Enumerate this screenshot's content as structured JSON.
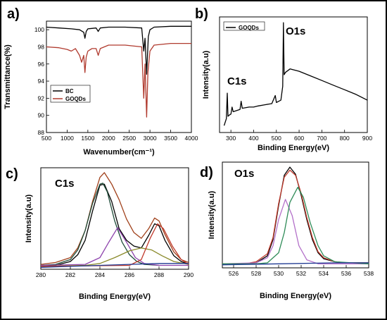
{
  "chart_data": [
    {
      "panel": "a)",
      "type": "line",
      "xlabel": "Wavenumber(cm⁻¹)",
      "ylabel": "Transmittance(%)",
      "xlim": [
        500,
        4000
      ],
      "ylim": [
        88,
        101
      ],
      "xticks": [
        500,
        1000,
        1500,
        2000,
        2500,
        3000,
        3500,
        4000
      ],
      "yticks": [
        88,
        90,
        92,
        94,
        96,
        98,
        100
      ],
      "legend_position": "bottom-left",
      "series": [
        {
          "name": "BC",
          "color": "#000000",
          "x": [
            500,
            800,
            1100,
            1300,
            1400,
            1430,
            1460,
            1500,
            1700,
            1750,
            1800,
            2000,
            2400,
            2800,
            2850,
            2880,
            2920,
            2960,
            3000,
            3100,
            3500,
            4000
          ],
          "y": [
            100.3,
            100.2,
            100.1,
            100.0,
            99.7,
            99.0,
            99.8,
            100.1,
            100.2,
            99.8,
            100.2,
            100.3,
            100.3,
            100.2,
            97.5,
            99.0,
            94.8,
            99.2,
            100.0,
            100.3,
            100.4,
            100.4
          ]
        },
        {
          "name": "GOQDs",
          "color": "#b03a2e",
          "x": [
            500,
            800,
            1000,
            1100,
            1200,
            1300,
            1350,
            1400,
            1430,
            1460,
            1500,
            1600,
            1700,
            1750,
            1800,
            2000,
            2400,
            2800,
            2850,
            2880,
            2920,
            2950,
            3000,
            3100,
            3500,
            4000
          ],
          "y": [
            98.0,
            97.9,
            97.7,
            97.5,
            97.8,
            97.0,
            96.2,
            97.0,
            95.0,
            96.8,
            97.5,
            97.8,
            97.8,
            97.0,
            97.8,
            98.2,
            98.2,
            98.0,
            92.0,
            96.0,
            89.8,
            95.0,
            97.5,
            98.2,
            98.4,
            98.4
          ]
        }
      ]
    },
    {
      "panel": "b)",
      "type": "line",
      "xlabel": "Binding Energy(eV)",
      "ylabel": "Intensity(a.u)",
      "xlim": [
        250,
        900
      ],
      "ylim": [
        0,
        100
      ],
      "xticks": [
        300,
        400,
        500,
        600,
        700,
        800,
        900
      ],
      "legend_position": "top-left",
      "annotations": [
        "C1s",
        "O1s"
      ],
      "series": [
        {
          "name": "GOQDs",
          "color": "#000000",
          "x": [
            270,
            280,
            284,
            287,
            292,
            300,
            305,
            310,
            340,
            345,
            350,
            380,
            400,
            420,
            450,
            480,
            495,
            500,
            520,
            528,
            531,
            534,
            540,
            560,
            600,
            650,
            700,
            750,
            800,
            850,
            900
          ],
          "y": [
            6,
            12,
            34,
            14,
            15,
            16,
            22,
            18,
            20,
            27,
            21,
            22,
            22,
            23,
            24,
            25,
            32,
            26,
            28,
            40,
            95,
            50,
            52,
            55,
            53,
            49,
            45,
            41,
            37,
            33,
            28
          ]
        }
      ]
    },
    {
      "panel": "c)",
      "type": "line",
      "xlabel": "Binding Energy(eV)",
      "ylabel": "Intensity(a.u)",
      "xlim": [
        280,
        290
      ],
      "ylim": [
        0,
        105
      ],
      "xticks": [
        280,
        282,
        284,
        286,
        288,
        290
      ],
      "annotations": [
        "C1s"
      ],
      "series": [
        {
          "color": "#000000",
          "x": [
            280,
            281,
            282,
            282.5,
            283,
            283.5,
            284,
            284.3,
            284.8,
            285.3,
            285.8,
            286.3,
            286.8,
            287.3,
            287.7,
            288,
            288.4,
            289,
            289.5,
            290
          ],
          "y": [
            3,
            4,
            8,
            15,
            30,
            60,
            87,
            88,
            70,
            42,
            30,
            24,
            22,
            35,
            47,
            45,
            30,
            14,
            8,
            5
          ]
        },
        {
          "color": "#a0401a",
          "x": [
            280,
            281,
            282,
            282.5,
            283,
            283.5,
            284,
            284.3,
            284.8,
            285.3,
            285.8,
            286.3,
            286.8,
            287.3,
            287.7,
            288,
            288.4,
            289,
            289.5,
            290
          ],
          "y": [
            5,
            7,
            12,
            22,
            40,
            70,
            95,
            100,
            88,
            72,
            52,
            38,
            32,
            42,
            53,
            50,
            36,
            18,
            10,
            7
          ]
        },
        {
          "color": "#1f4d3a",
          "x": [
            280,
            281,
            282,
            282.5,
            283,
            283.5,
            284,
            284.2,
            284.5,
            285,
            285.5,
            286,
            286.5,
            287,
            288
          ],
          "y": [
            4,
            5,
            10,
            20,
            40,
            68,
            88,
            89,
            80,
            50,
            28,
            15,
            8,
            5,
            4
          ]
        },
        {
          "color": "#8e44ad",
          "x": [
            280,
            283,
            284,
            284.6,
            285.2,
            285.8,
            286.4,
            287,
            288,
            290
          ],
          "y": [
            4,
            5,
            12,
            28,
            43,
            28,
            12,
            6,
            4,
            4
          ]
        },
        {
          "color": "#8a8a2a",
          "x": [
            280,
            283,
            284,
            285,
            286,
            286.8,
            287.5,
            288.2,
            289,
            290
          ],
          "y": [
            3,
            4,
            6,
            12,
            19,
            22,
            20,
            14,
            8,
            5
          ]
        },
        {
          "color": "#c0392b",
          "x": [
            280,
            286,
            286.8,
            287.4,
            287.9,
            288.3,
            288.9,
            289.5,
            290
          ],
          "y": [
            3,
            4,
            10,
            32,
            47,
            42,
            24,
            10,
            5
          ]
        },
        {
          "color": "#1f3a93",
          "x": [
            280,
            282,
            284,
            286,
            288,
            290
          ],
          "y": [
            2,
            3,
            4,
            5,
            6,
            6
          ]
        }
      ]
    },
    {
      "panel": "d)",
      "type": "line",
      "xlabel": "Binding Energy(eV)",
      "ylabel": "Intensity(a.u)",
      "xlim": [
        525,
        538
      ],
      "ylim": [
        0,
        105
      ],
      "xticks": [
        526,
        528,
        530,
        532,
        534,
        536,
        538
      ],
      "annotations": [
        "O1s"
      ],
      "series": [
        {
          "color": "#000000",
          "x": [
            525,
            527,
            528,
            529,
            529.5,
            530,
            530.5,
            531,
            531.5,
            532,
            532.5,
            533,
            533.5,
            534,
            535,
            536,
            538
          ],
          "y": [
            4,
            4,
            5,
            12,
            28,
            62,
            92,
            100,
            93,
            72,
            48,
            28,
            15,
            9,
            6,
            5,
            5
          ]
        },
        {
          "color": "#c0392b",
          "x": [
            525,
            527,
            528,
            529,
            529.5,
            530,
            530.5,
            531,
            531.5,
            532,
            532.5,
            533,
            533.5,
            534,
            535,
            536,
            538
          ],
          "y": [
            4,
            4,
            6,
            14,
            30,
            64,
            90,
            97,
            92,
            74,
            50,
            30,
            16,
            10,
            6,
            5,
            5
          ]
        },
        {
          "color": "#b370c9",
          "x": [
            525,
            528,
            529,
            529.5,
            530,
            530.6,
            531.2,
            531.8,
            532.5,
            533.5,
            538
          ],
          "y": [
            4,
            5,
            10,
            22,
            48,
            68,
            52,
            22,
            8,
            4,
            4
          ]
        },
        {
          "color": "#2e8b57",
          "x": [
            525,
            528,
            529,
            530,
            530.5,
            531,
            531.7,
            532.2,
            532.8,
            533.5,
            534,
            535,
            538
          ],
          "y": [
            4,
            4,
            5,
            15,
            35,
            65,
            80,
            70,
            45,
            22,
            12,
            6,
            4
          ]
        },
        {
          "color": "#1f3a93",
          "x": [
            525,
            530,
            535,
            538
          ],
          "y": [
            3,
            4,
            5,
            5
          ]
        }
      ]
    }
  ]
}
